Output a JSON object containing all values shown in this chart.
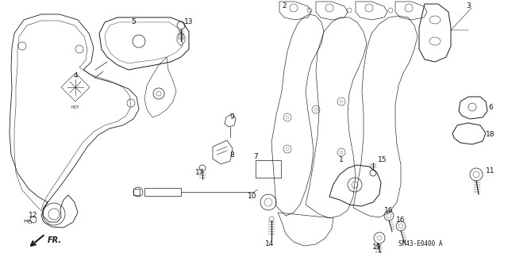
{
  "bg_color": "#ffffff",
  "line_color": "#1a1a1a",
  "text_color": "#111111",
  "code_text": "SM43-E0400 A",
  "font_size_label": 6.5,
  "font_size_code": 5.5,
  "figsize": [
    6.4,
    3.19
  ],
  "dpi": 100
}
